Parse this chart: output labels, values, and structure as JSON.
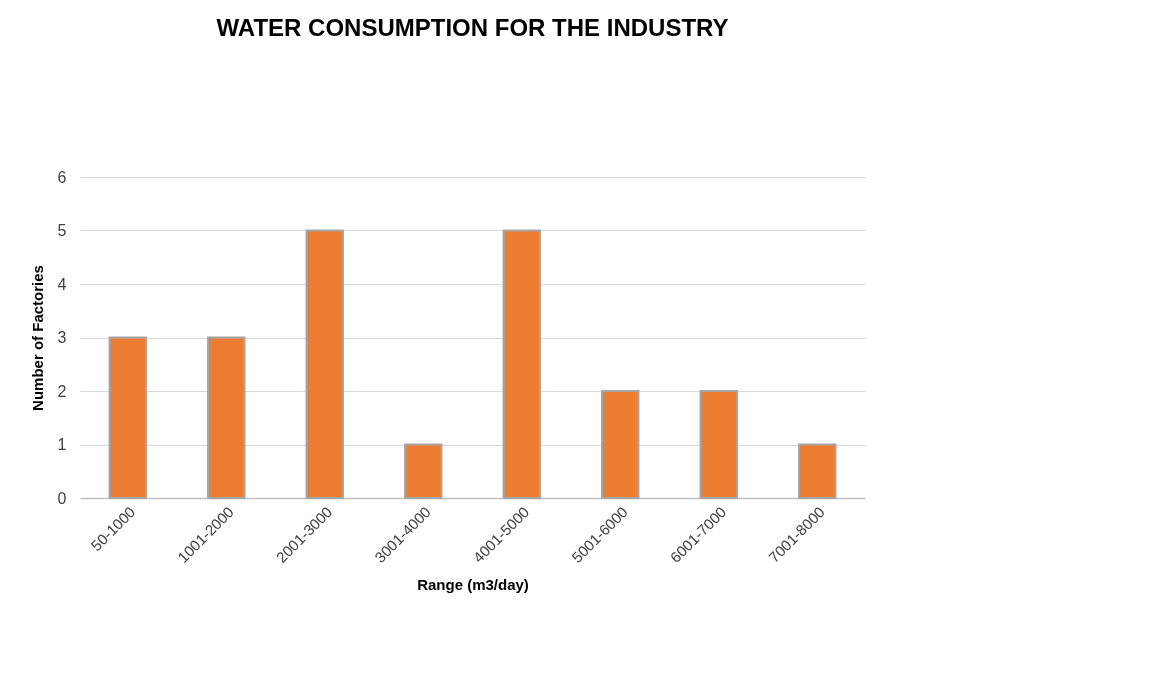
{
  "chart_data": {
    "type": "bar",
    "title": "WATER CONSUMPTION FOR THE INDUSTRY",
    "xlabel": "Range (m3/day)",
    "ylabel": "Number of Factories",
    "categories": [
      "50-1000",
      "1001-2000",
      "2001-3000",
      "3001-4000",
      "4001-5000",
      "5001-6000",
      "6001-7000",
      "7001-8000"
    ],
    "values": [
      3,
      3,
      5,
      1,
      5,
      2,
      2,
      1
    ],
    "color": "#ed7d31",
    "ylim": [
      0,
      6
    ],
    "yticks": [
      0,
      1,
      2,
      3,
      4,
      5,
      6
    ],
    "grid": "y"
  }
}
